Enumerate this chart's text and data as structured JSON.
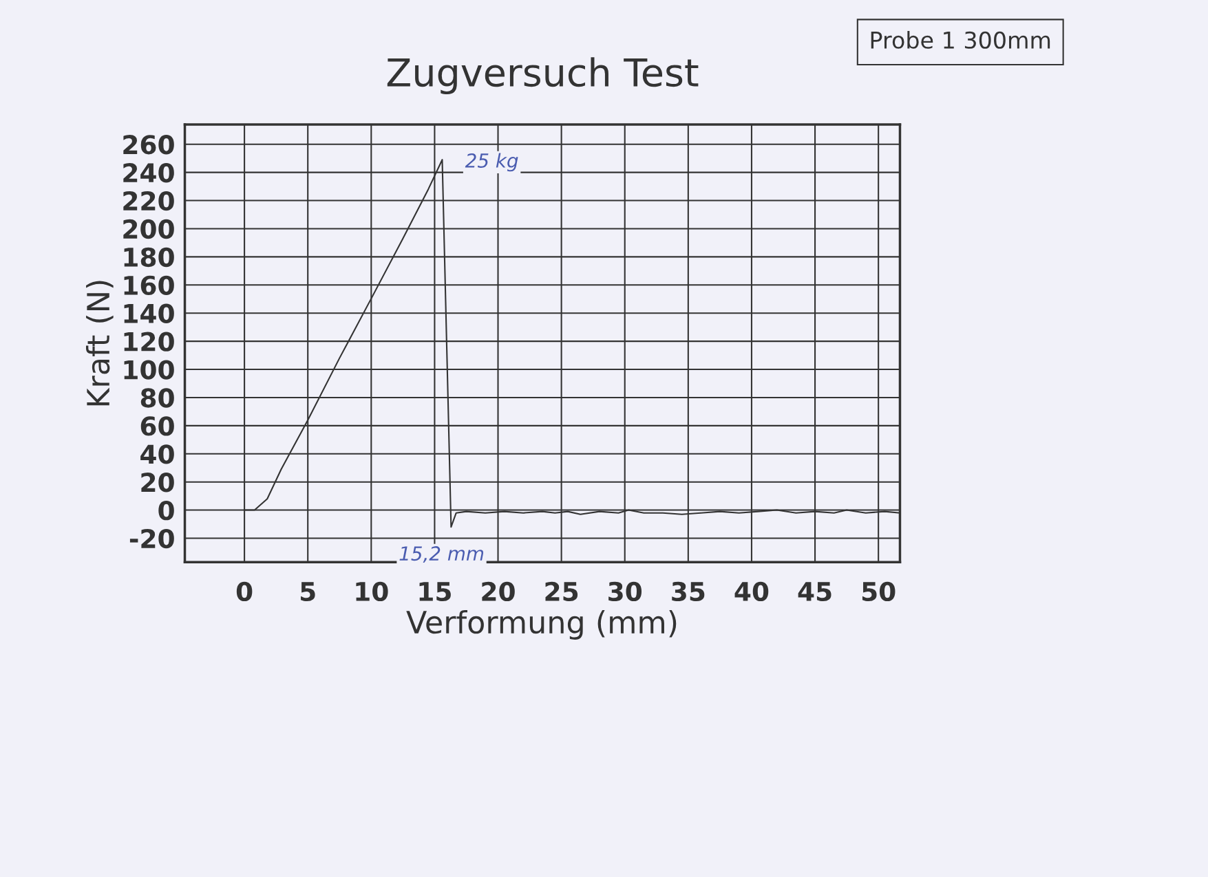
{
  "chart_data": {
    "type": "line",
    "title": "Zugversuch Test",
    "xlabel": "Verformung (mm)",
    "ylabel": "Kraft (N)",
    "annotations": [
      "Probe 1 300mm",
      "25 kg",
      "15,2 mm"
    ],
    "series": [
      {
        "color": "#333333",
        "x": [
          0,
          0.8,
          1.8,
          2.9,
          5,
          7.5,
          10.1,
          12.5,
          14.5,
          15.6,
          16.3,
          16.7,
          17.5,
          19,
          20.5,
          22,
          23.5,
          24.5,
          25.5,
          26.5,
          28,
          29.5,
          30.3,
          31.5,
          33,
          34.5,
          36,
          37.5,
          39,
          40.5,
          42,
          43.5,
          45,
          46.5,
          47.5,
          49,
          50.5,
          51.7
        ],
        "values": [
          0,
          0,
          8,
          29,
          64,
          108,
          152,
          193,
          228,
          249,
          -12,
          -2,
          -1,
          -2,
          -1,
          -2,
          -1,
          -2,
          -1,
          -3,
          -1,
          -2,
          0,
          -2,
          -2,
          -3,
          -2,
          -1,
          -2,
          -1,
          0,
          -2,
          -1,
          -2,
          0,
          -2,
          -1,
          -2
        ]
      }
    ],
    "xlim": [
      -4.7,
      51.7
    ],
    "ylim": [
      -37,
      274
    ],
    "xticks": [
      0,
      5,
      10,
      15,
      20,
      25,
      30,
      35,
      40,
      45,
      50
    ],
    "yticks": [
      -20,
      0,
      20,
      40,
      60,
      80,
      100,
      120,
      140,
      160,
      180,
      200,
      220,
      240,
      260
    ],
    "grid": true,
    "marker": "none",
    "line_style": "solid"
  }
}
